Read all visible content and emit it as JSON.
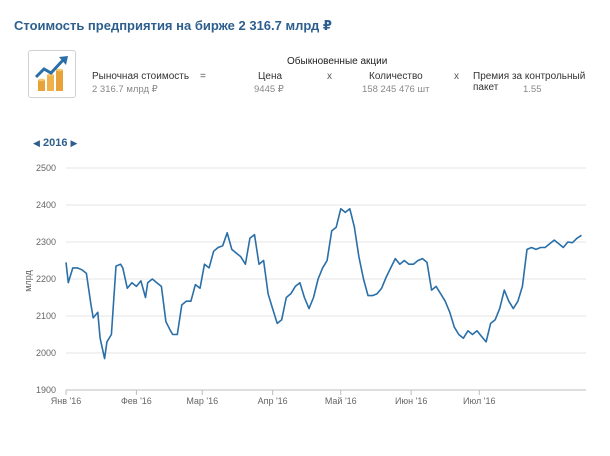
{
  "header": {
    "title": "Стоимость предприятия на бирже 2 316.7 млрд ₽",
    "shares_heading": "Обыкновенные акции",
    "logo_icon": "growth-chart-coins-icon"
  },
  "formula": {
    "market_cap_label": "Рыночная стоимость",
    "market_cap_value": "2 316.7 млрд ₽",
    "equals": "=",
    "price_label": "Цена",
    "price_value": "9445 ₽",
    "times1": "x",
    "quantity_label": "Количество",
    "quantity_value": "158 245 476 шт",
    "times2": "x",
    "premium_label": "Премия за контрольный пакет",
    "premium_value": "1.55"
  },
  "period": {
    "prev_icon": "chevron-left-icon",
    "year": "2016",
    "next_icon": "chevron-right-icon"
  },
  "colors": {
    "line": "#2a6fa8",
    "grid": "#e6e6e6",
    "title": "#2d5f8e"
  },
  "chart_data": {
    "type": "line",
    "ylabel": "млрд",
    "ylim": [
      1900,
      2500
    ],
    "yticks": [
      1900,
      2000,
      2100,
      2200,
      2300,
      2400,
      2500
    ],
    "xlim": [
      "2016-01-01",
      "2016-08-17"
    ],
    "xticks": [
      {
        "date": "2016-01-01",
        "label": "Янв '16"
      },
      {
        "date": "2016-02-01",
        "label": "Фев '16"
      },
      {
        "date": "2016-03-01",
        "label": "Мар '16"
      },
      {
        "date": "2016-04-01",
        "label": "Апр '16"
      },
      {
        "date": "2016-05-01",
        "label": "Май '16"
      },
      {
        "date": "2016-06-01",
        "label": "Июн '16"
      },
      {
        "date": "2016-07-01",
        "label": "Июл '16"
      }
    ],
    "grid": true,
    "series": [
      {
        "x": [
          "2016-01-01",
          "2016-01-02",
          "2016-01-04",
          "2016-01-06",
          "2016-01-08",
          "2016-01-10",
          "2016-01-12",
          "2016-01-13",
          "2016-01-15",
          "2016-01-16",
          "2016-01-18",
          "2016-01-19",
          "2016-01-21",
          "2016-01-23",
          "2016-01-25",
          "2016-01-26",
          "2016-01-28",
          "2016-01-30",
          "2016-02-01",
          "2016-02-03",
          "2016-02-05",
          "2016-02-06",
          "2016-02-08",
          "2016-02-10",
          "2016-02-12",
          "2016-02-14",
          "2016-02-16",
          "2016-02-17",
          "2016-02-19",
          "2016-02-21",
          "2016-02-23",
          "2016-02-25",
          "2016-02-27",
          "2016-02-29",
          "2016-03-02",
          "2016-03-04",
          "2016-03-06",
          "2016-03-08",
          "2016-03-10",
          "2016-03-12",
          "2016-03-14",
          "2016-03-16",
          "2016-03-18",
          "2016-03-20",
          "2016-03-22",
          "2016-03-24",
          "2016-03-26",
          "2016-03-28",
          "2016-03-30",
          "2016-04-01",
          "2016-04-03",
          "2016-04-05",
          "2016-04-07",
          "2016-04-09",
          "2016-04-11",
          "2016-04-13",
          "2016-04-15",
          "2016-04-17",
          "2016-04-19",
          "2016-04-21",
          "2016-04-23",
          "2016-04-25",
          "2016-04-27",
          "2016-04-29",
          "2016-05-01",
          "2016-05-03",
          "2016-05-05",
          "2016-05-07",
          "2016-05-09",
          "2016-05-11",
          "2016-05-13",
          "2016-05-15",
          "2016-05-17",
          "2016-05-19",
          "2016-05-21",
          "2016-05-23",
          "2016-05-25",
          "2016-05-27",
          "2016-05-29",
          "2016-05-31",
          "2016-06-02",
          "2016-06-04",
          "2016-06-06",
          "2016-06-08",
          "2016-06-10",
          "2016-06-12",
          "2016-06-14",
          "2016-06-16",
          "2016-06-18",
          "2016-06-20",
          "2016-06-22",
          "2016-06-24",
          "2016-06-26",
          "2016-06-28",
          "2016-06-30",
          "2016-07-02",
          "2016-07-04",
          "2016-07-06",
          "2016-07-08",
          "2016-07-10",
          "2016-07-12",
          "2016-07-14",
          "2016-07-16",
          "2016-07-18",
          "2016-07-20",
          "2016-07-22",
          "2016-07-24",
          "2016-07-26",
          "2016-07-28",
          "2016-07-30",
          "2016-08-01",
          "2016-08-03",
          "2016-08-05",
          "2016-08-07",
          "2016-08-09",
          "2016-08-11",
          "2016-08-13",
          "2016-08-15"
        ],
        "y": [
          2245,
          2190,
          2230,
          2230,
          2225,
          2215,
          2130,
          2095,
          2110,
          2040,
          1985,
          2030,
          2050,
          2235,
          2240,
          2230,
          2175,
          2190,
          2180,
          2195,
          2150,
          2190,
          2200,
          2190,
          2180,
          2085,
          2060,
          2050,
          2050,
          2130,
          2140,
          2140,
          2185,
          2175,
          2240,
          2230,
          2275,
          2285,
          2290,
          2325,
          2280,
          2270,
          2260,
          2240,
          2310,
          2320,
          2240,
          2250,
          2160,
          2120,
          2080,
          2090,
          2150,
          2160,
          2180,
          2190,
          2150,
          2120,
          2150,
          2200,
          2230,
          2250,
          2330,
          2340,
          2390,
          2380,
          2390,
          2340,
          2260,
          2200,
          2155,
          2155,
          2160,
          2175,
          2205,
          2230,
          2255,
          2240,
          2250,
          2240,
          2240,
          2250,
          2255,
          2245,
          2170,
          2180,
          2160,
          2140,
          2110,
          2070,
          2050,
          2040,
          2060,
          2050,
          2060,
          2045,
          2030,
          2080,
          2090,
          2120,
          2170,
          2140,
          2120,
          2140,
          2180,
          2280,
          2285,
          2280,
          2285,
          2285,
          2295,
          2305,
          2295,
          2285,
          2300,
          2298,
          2310,
          2318
        ]
      }
    ]
  }
}
